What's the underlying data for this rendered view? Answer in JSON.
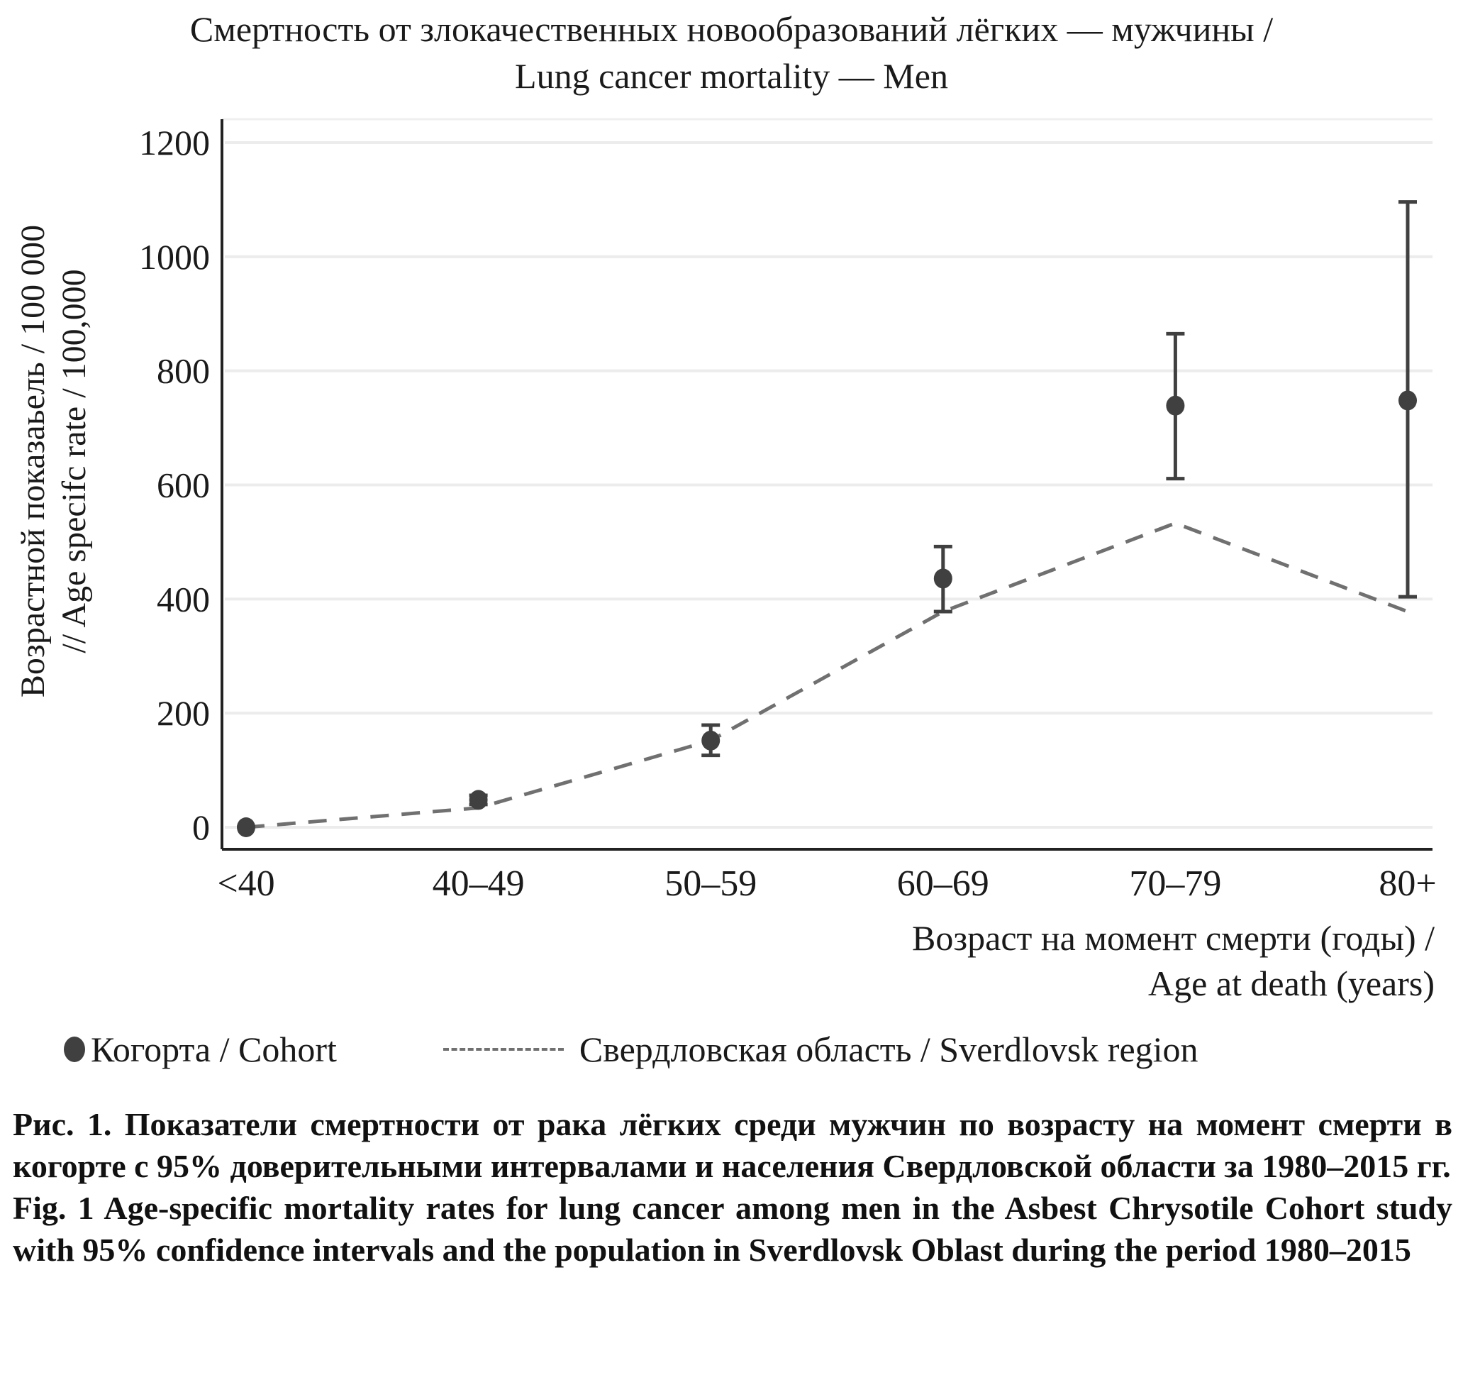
{
  "chart_data": {
    "type": "scatter",
    "title": [
      "Смертность от злокачественных новообразований лёгких — мужчины /",
      "Lung cancer mortality — Men"
    ],
    "ylabel": [
      "Возрастной показаьель / 100 000",
      "// Age specifc rate / 100,000"
    ],
    "xlabel": [
      "Возраст на момент смерти (годы) /",
      "Age at death (years)"
    ],
    "categories": [
      "<40",
      "40–49",
      "50–59",
      "60–69",
      "70–79",
      "80+"
    ],
    "ylim": [
      0,
      1200
    ],
    "yticks": [
      "0",
      "200",
      "400",
      "600",
      "800",
      "1000",
      "1200"
    ],
    "ytick_values": [
      0,
      200,
      400,
      600,
      800,
      1000,
      1200
    ],
    "grid": true,
    "legend_position": "bottom",
    "series": [
      {
        "name": "Когорта / Cohort",
        "kind": "points-with-error-bars",
        "color": "#404040",
        "values": [
          0,
          48,
          152,
          436,
          739,
          748
        ],
        "ci_low": [
          0,
          40,
          126,
          378,
          611,
          404
        ],
        "ci_high": [
          0,
          56,
          179,
          492,
          865,
          1096
        ]
      },
      {
        "name": "Свердловская область / Sverdlovsk region",
        "kind": "dashed-line",
        "color": "#707070",
        "values": [
          0,
          34,
          152,
          378,
          533,
          378
        ]
      }
    ]
  },
  "legend": {
    "cohort": "Когорта / Cohort",
    "region": "Свердловская область / Sverdlovsk region"
  },
  "caption": {
    "ru": "Рис. 1. Показатели смертности от рака лёгких среди мужчин по возрасту на момент смерти в когорте с 95% доверительными интервалами и населения Свердловской области за 1980–2015 гг.",
    "en": "Fig. 1 Age-specific mortality rates for lung cancer among men in the Asbest Chrysotile Cohort study with 95% confidence intervals and the population in Sverdlovsk Oblast during the period 1980–2015"
  }
}
